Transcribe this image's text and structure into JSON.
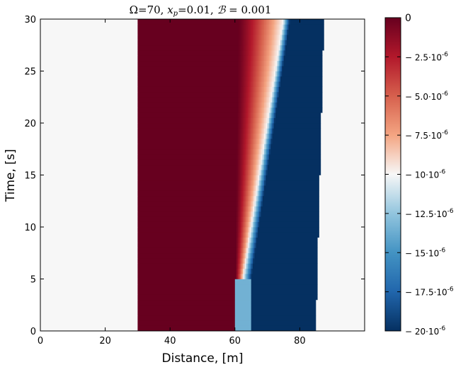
{
  "chart_data": {
    "type": "heatmap",
    "title": "Ω=70, x_p=0.01, ℬ = 0.001",
    "title_parts": {
      "a": "Ω=70, ",
      "b": "x",
      "b_sub": "p",
      "c": "=0.01, ",
      "d": "ℬ",
      "e": " = 0.001"
    },
    "xlabel": "Distance, [m]",
    "ylabel": "Time, [s]",
    "xlim": [
      0,
      100
    ],
    "ylim": [
      0,
      30
    ],
    "xticks": [
      0,
      20,
      40,
      60,
      80
    ],
    "yticks": [
      0,
      5,
      10,
      15,
      20,
      25,
      30
    ],
    "grid": false,
    "colorbar": {
      "range": [
        0,
        -2e-05
      ],
      "ticks": [
        {
          "value": 0,
          "label": "0",
          "exp": ""
        },
        {
          "value": -2.5e-06,
          "label": "2.5·10",
          "exp": "-6"
        },
        {
          "value": -5e-06,
          "label": "5.0·10",
          "exp": "-6"
        },
        {
          "value": -7.5e-06,
          "label": "7.5·10",
          "exp": "-6"
        },
        {
          "value": -1e-05,
          "label": "10·10",
          "exp": "-6"
        },
        {
          "value": -1.25e-05,
          "label": "12.5·10",
          "exp": "-6"
        },
        {
          "value": -1.5e-05,
          "label": "15·10",
          "exp": "-6"
        },
        {
          "value": -1.75e-05,
          "label": "17.5·10",
          "exp": "-6"
        },
        {
          "value": -2e-05,
          "label": "20·10",
          "exp": "-6"
        }
      ]
    },
    "regions": [
      {
        "x": [
          0,
          30
        ],
        "t": [
          0,
          30
        ],
        "value": -1e-05
      },
      {
        "x_start": 30,
        "x_end_at_t0": 60,
        "x_end_at_t30": 61,
        "value": 0
      },
      {
        "description_of_field": "red-to-white gradient from x=61 to front",
        "front_x_at_t0": 60,
        "front_x_at_t30": 75
      },
      {
        "block": "lower-left wedge light blue",
        "x": [
          60,
          65
        ],
        "t": [
          0,
          5
        ],
        "value": -1.35e-05
      },
      {
        "block": "dark blue",
        "x_start_at_t0": 65,
        "x_start_at_t30": 77,
        "x_end_at_t0": 85,
        "x_end_at_t30": 87.5,
        "value": -2e-05
      },
      {
        "x": [
          85,
          100
        ],
        "t": [
          0,
          30
        ],
        "value": -1e-05
      }
    ]
  }
}
